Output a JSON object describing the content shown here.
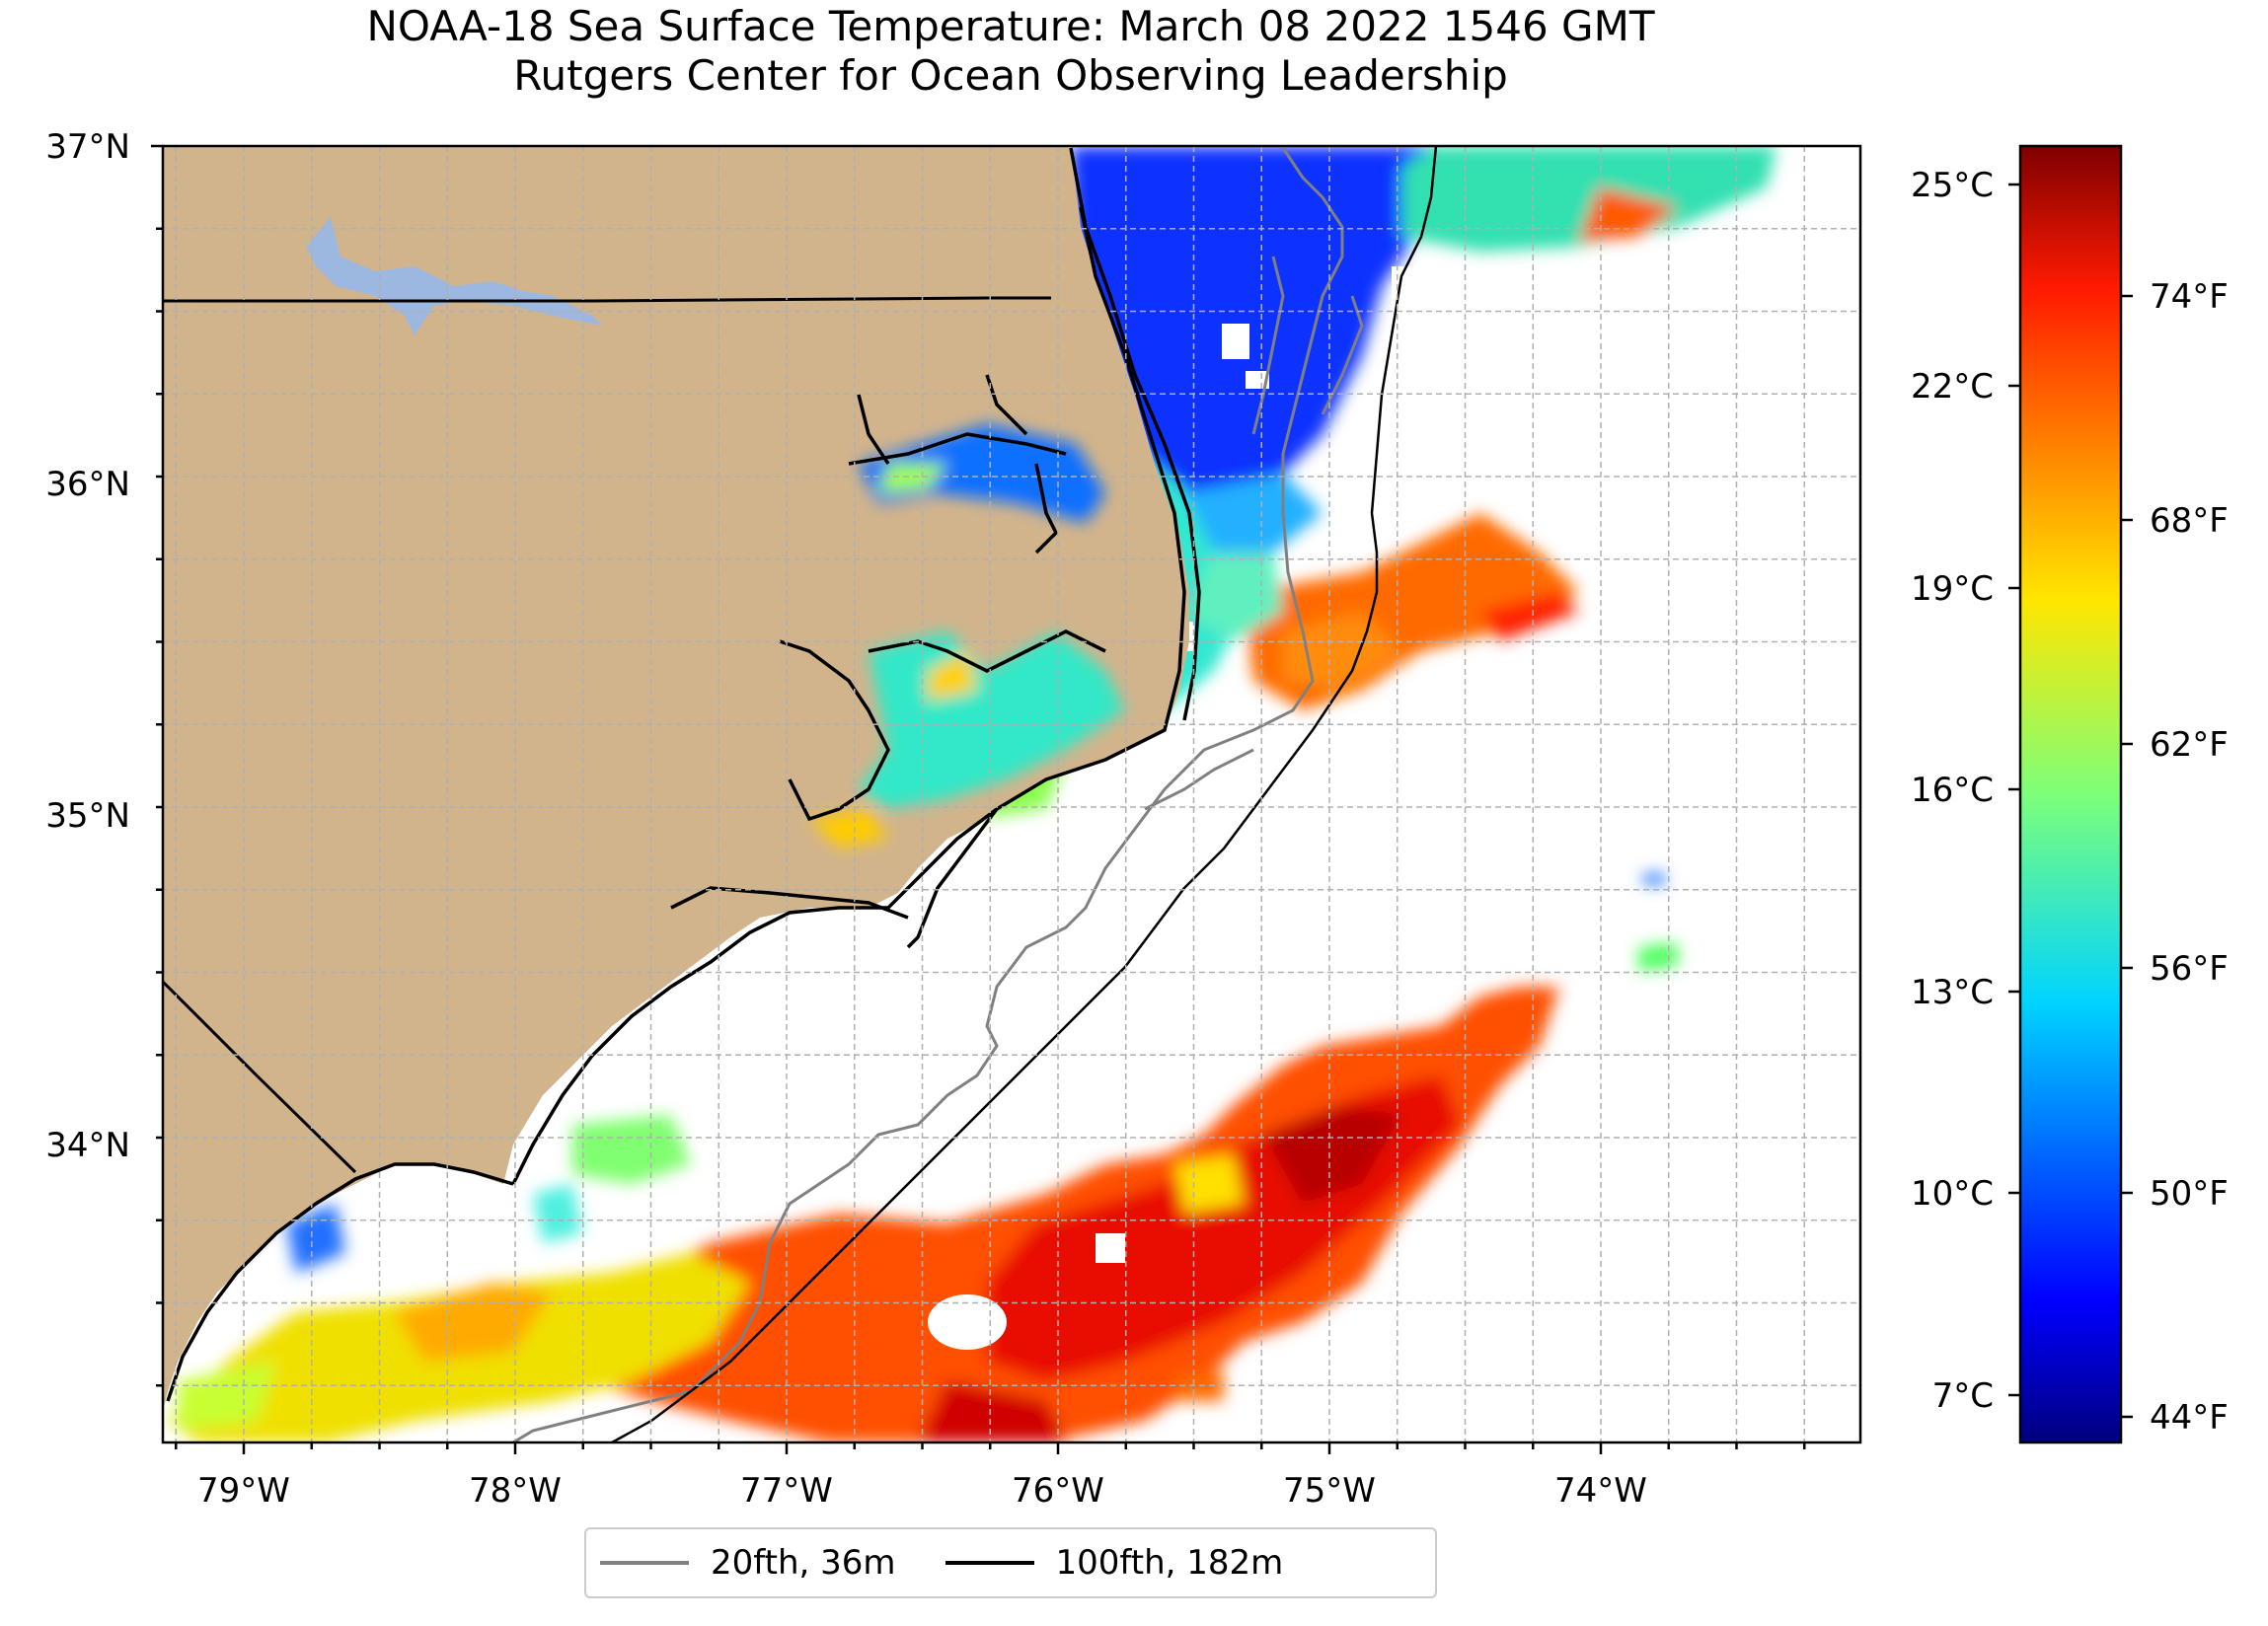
{
  "title": {
    "line1": "NOAA-18 Sea Surface Temperature: March 08 2022 1546 GMT",
    "line2": "Rutgers Center for Ocean Observing Leadership"
  },
  "map": {
    "lat_ticks": [
      "37°N",
      "36°N",
      "35°N",
      "34°N"
    ],
    "lon_ticks": [
      "79°W",
      "78°W",
      "77°W",
      "76°W",
      "75°W",
      "74°W"
    ],
    "land_color": "#d2b48c",
    "lake_color": "#9db8e0",
    "no_data_color": "#ffffff"
  },
  "colorbar": {
    "celsius_ticks": [
      "25°C",
      "22°C",
      "19°C",
      "16°C",
      "13°C",
      "10°C",
      "7°C"
    ],
    "fahrenheit_ticks": [
      "74°F",
      "68°F",
      "62°F",
      "56°F",
      "50°F",
      "44°F"
    ],
    "colormap": "jet"
  },
  "legend": {
    "items": [
      {
        "label": "20fth, 36m",
        "color": "#808080"
      },
      {
        "label": "100fth, 182m",
        "color": "#000000"
      }
    ]
  }
}
